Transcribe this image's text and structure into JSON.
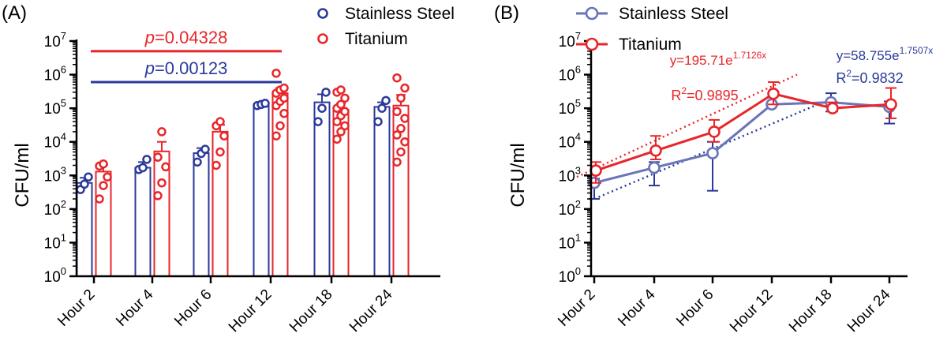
{
  "chart_data": [
    {
      "panel_label": "(A)",
      "type": "bar",
      "scale": "log",
      "ylabel": "CFU/ml",
      "ylim": [
        1,
        10000000
      ],
      "y_ticks": [
        {
          "value": 1,
          "base": "10",
          "exp": "0"
        },
        {
          "value": 10,
          "base": "10",
          "exp": "1"
        },
        {
          "value": 100,
          "base": "10",
          "exp": "2"
        },
        {
          "value": 1000,
          "base": "10",
          "exp": "3"
        },
        {
          "value": 10000,
          "base": "10",
          "exp": "4"
        },
        {
          "value": 100000,
          "base": "10",
          "exp": "5"
        },
        {
          "value": 1000000,
          "base": "10",
          "exp": "6"
        },
        {
          "value": 10000000,
          "base": "10",
          "exp": "7"
        }
      ],
      "categories": [
        "Hour 2",
        "Hour 4",
        "Hour 6",
        "Hour 12",
        "Hour 18",
        "Hour 24"
      ],
      "series": [
        {
          "name": "Stainless Steel",
          "color": "#2b3a9a",
          "values": [
            600,
            1700,
            4600,
            130000,
            150000,
            110000
          ],
          "error_upper": [
            850,
            2500,
            6500,
            150000,
            260000,
            150000
          ],
          "points": [
            [
              380,
              550,
              900
            ],
            [
              1500,
              1700,
              3000
            ],
            [
              2500,
              4500,
              6000
            ],
            [
              120000,
              130000,
              140000
            ],
            [
              40000,
              100000,
              300000
            ],
            [
              40000,
              100000,
              170000
            ]
          ]
        },
        {
          "name": "Titanium",
          "color": "#e8262a",
          "values": [
            1300,
            5200,
            20000,
            280000,
            90000,
            120000
          ],
          "error_upper": [
            2100,
            10000,
            32000,
            400000,
            140000,
            250000
          ],
          "points": [
            [
              200,
              500,
              900,
              1900,
              2200
            ],
            [
              250,
              600,
              1800,
              3500,
              20000
            ],
            [
              2000,
              5000,
              15000,
              30000,
              40000
            ],
            [
              15000,
              30000,
              70000,
              120000,
              160000,
              200000,
              280000,
              350000,
              400000,
              1100000
            ],
            [
              12000,
              20000,
              30000,
              40000,
              60000,
              80000,
              100000,
              130000,
              200000,
              300000,
              350000
            ],
            [
              2500,
              5000,
              10000,
              16000,
              25000,
              50000,
              80000,
              200000,
              400000,
              800000
            ]
          ]
        }
      ],
      "annotations": [
        {
          "p_prefix": "p",
          "p_value": "=0.04328",
          "color": "#e8262a",
          "from": "Hour 2",
          "to": "Hour 12",
          "level": 5000000
        },
        {
          "p_prefix": "p",
          "p_value": "=0.00123",
          "color": "#2b3a9a",
          "from": "Hour 2",
          "to": "Hour 12",
          "level": 600000
        }
      ],
      "legend": [
        "Stainless Steel",
        "Titanium"
      ],
      "legend_position": "top-right"
    },
    {
      "panel_label": "(B)",
      "type": "line",
      "scale": "log",
      "ylabel": "CFU/ml",
      "ylim": [
        1,
        10000000
      ],
      "categories": [
        "Hour 2",
        "Hour 4",
        "Hour 6",
        "Hour 12",
        "Hour 18",
        "Hour 24"
      ],
      "series": [
        {
          "name": "Stainless Steel",
          "color": "#2b3a9a",
          "values": [
            600,
            1700,
            4600,
            130000,
            150000,
            110000
          ],
          "error_lower": [
            200,
            500,
            350,
            130000,
            80000,
            35000
          ],
          "error_upper": [
            800,
            2500,
            10000,
            130000,
            280000,
            160000
          ],
          "fit": {
            "label": "y=58.755e",
            "exponent": "1.7507x",
            "r2_label": "R",
            "r2_sup": "2",
            "r2_value": "=0.9832",
            "from": 200,
            "to": 200000
          }
        },
        {
          "name": "Titanium",
          "color": "#e8262a",
          "values": [
            1400,
            5500,
            20000,
            270000,
            100000,
            130000
          ],
          "error_lower": [
            600,
            3000,
            10000,
            130000,
            80000,
            50000
          ],
          "error_upper": [
            2500,
            15000,
            45000,
            600000,
            150000,
            400000
          ],
          "fit": {
            "label": "y=195.71e",
            "exponent": "1.7126x",
            "r2_label": "R",
            "r2_sup": "2",
            "r2_value": "=0.9895",
            "from": 900,
            "to": 1000000
          }
        }
      ],
      "legend": [
        "Stainless Steel",
        "Titanium"
      ],
      "legend_position": "top-left"
    }
  ]
}
